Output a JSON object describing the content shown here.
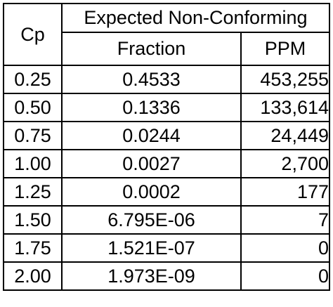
{
  "table": {
    "header": {
      "cp": "Cp",
      "group": "Expected Non-Conforming",
      "fraction": "Fraction",
      "ppm": "PPM"
    },
    "rows": [
      {
        "cp": "0.25",
        "fraction": "0.4533",
        "ppm": "453,255"
      },
      {
        "cp": "0.50",
        "fraction": "0.1336",
        "ppm": "133,614"
      },
      {
        "cp": "0.75",
        "fraction": "0.0244",
        "ppm": "24,449"
      },
      {
        "cp": "1.00",
        "fraction": "0.0027",
        "ppm": "2,700"
      },
      {
        "cp": "1.25",
        "fraction": "0.0002",
        "ppm": "177"
      },
      {
        "cp": "1.50",
        "fraction": "6.795E-06",
        "ppm": "7"
      },
      {
        "cp": "1.75",
        "fraction": "1.521E-07",
        "ppm": "0"
      },
      {
        "cp": "2.00",
        "fraction": "1.973E-09",
        "ppm": "0"
      }
    ]
  }
}
